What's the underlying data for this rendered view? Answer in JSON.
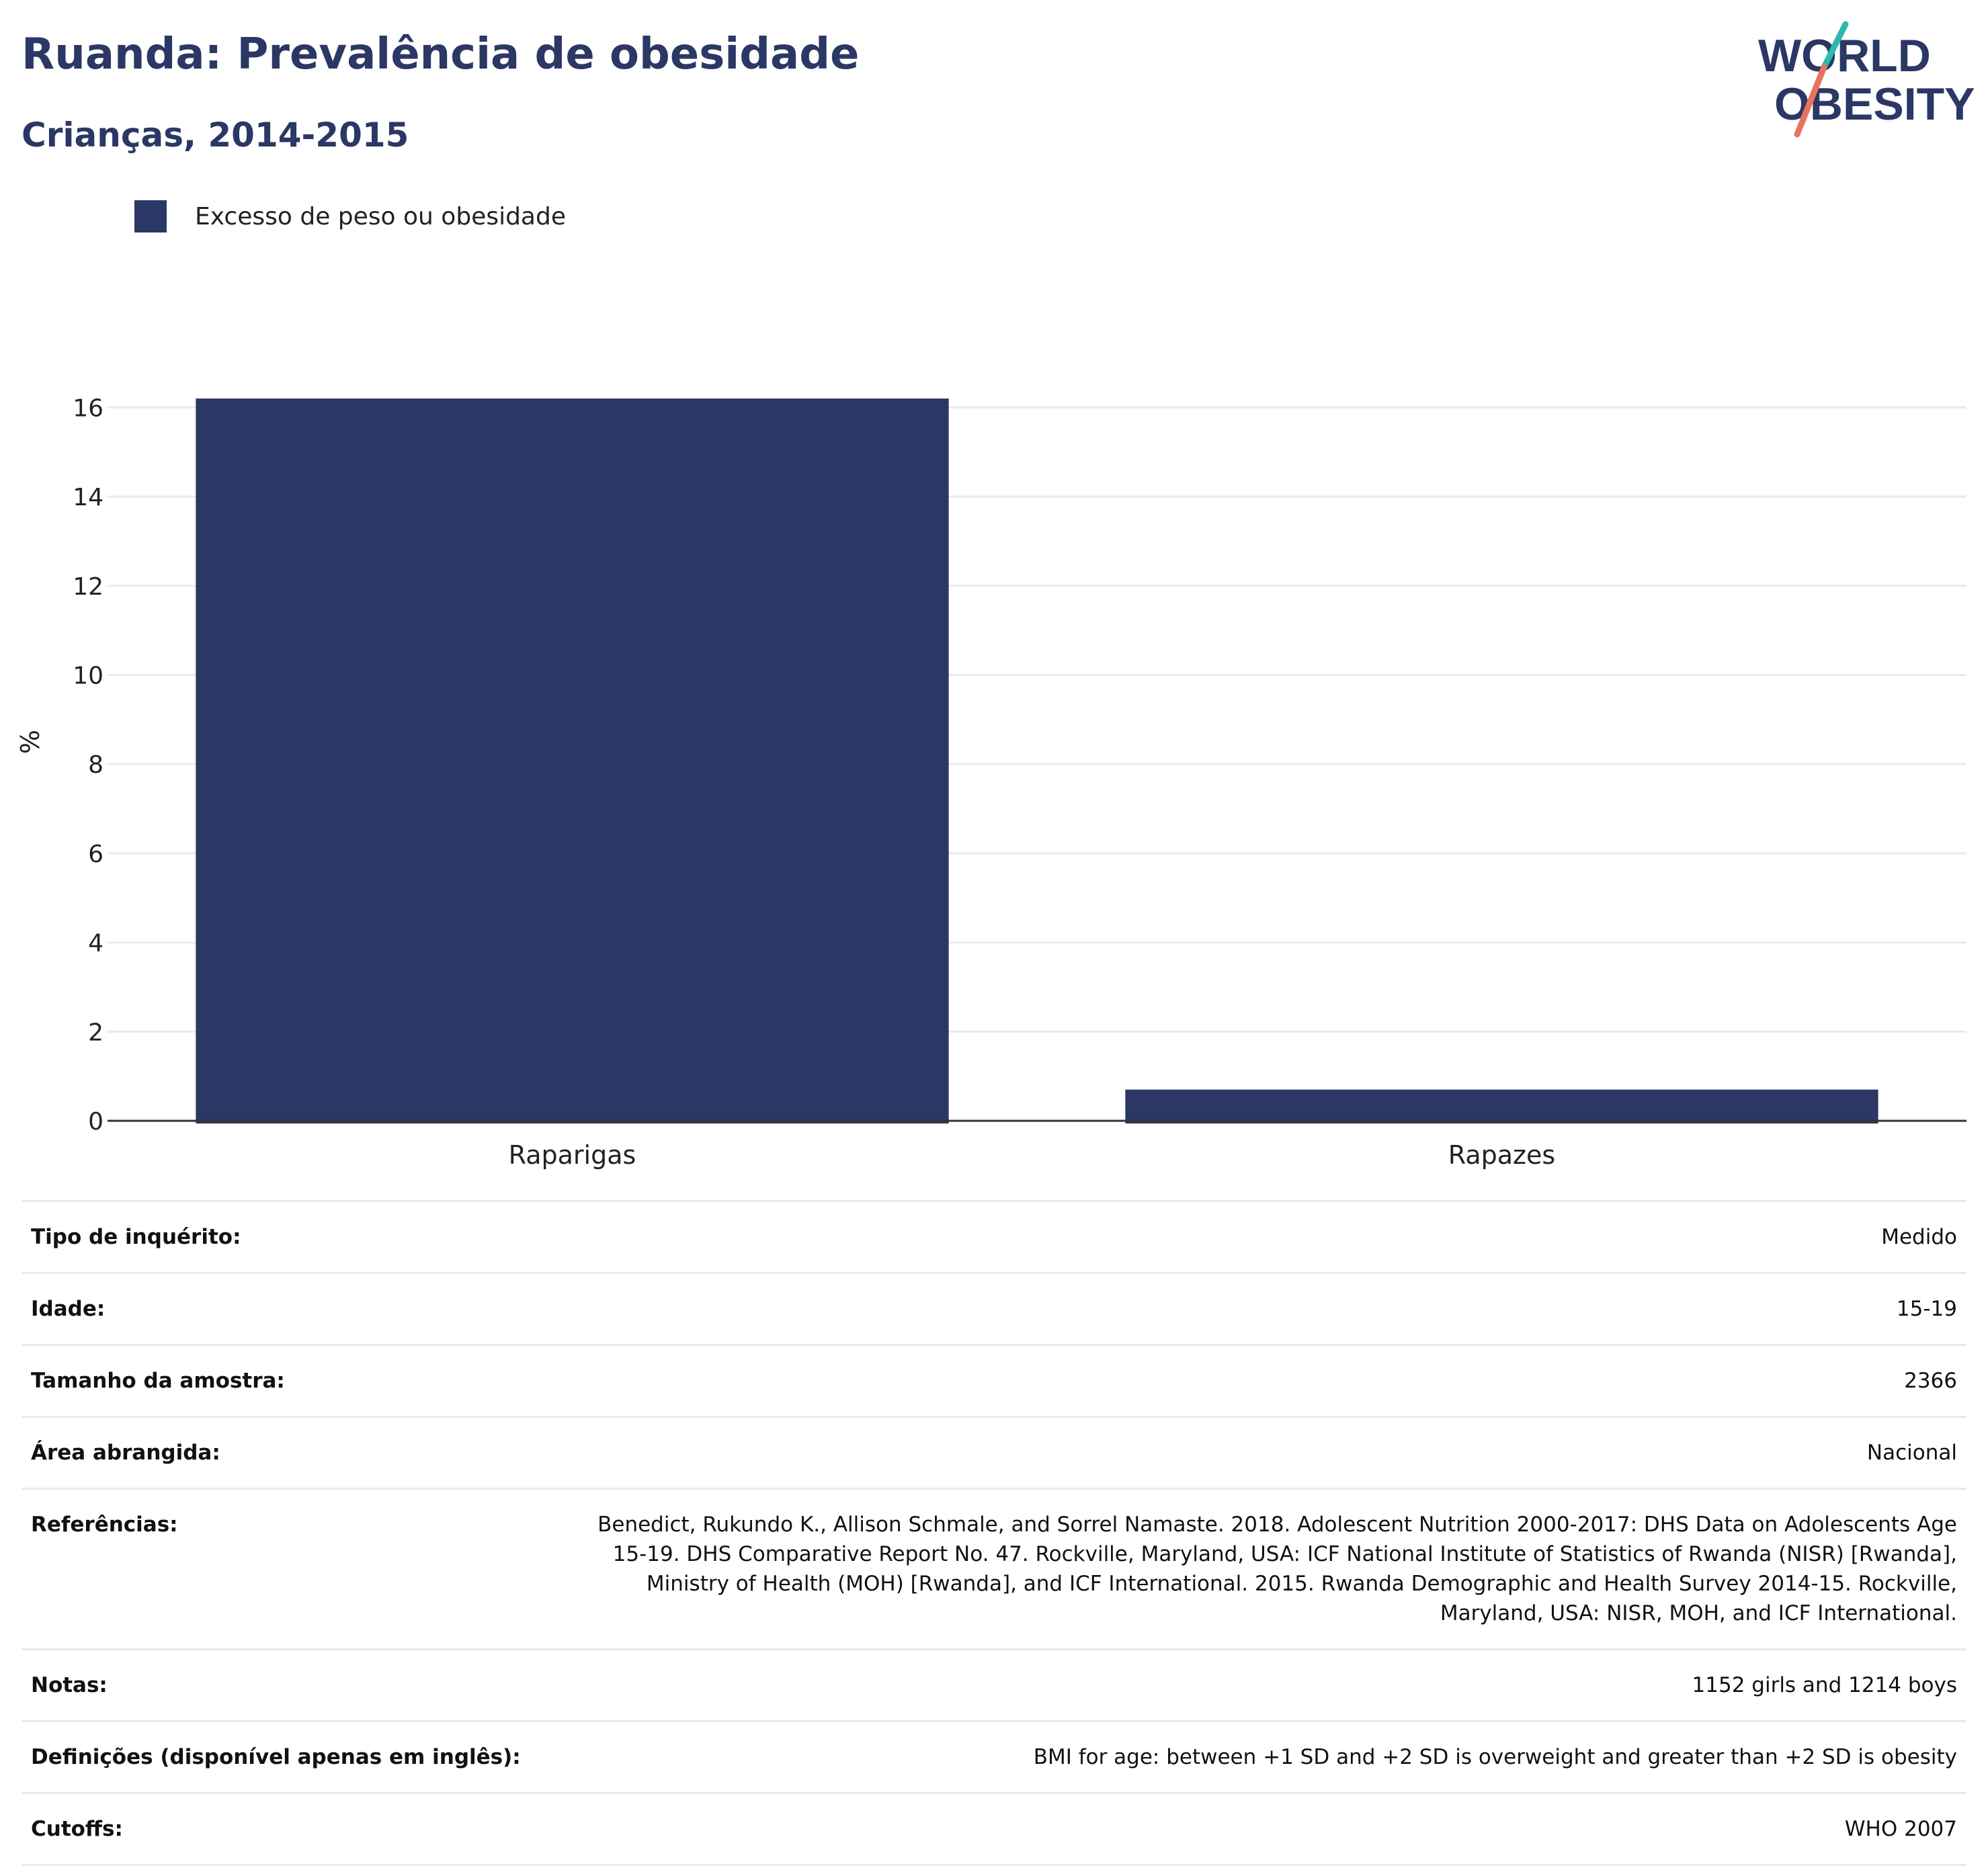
{
  "header": {
    "title": "Ruanda: Prevalência de obesidade",
    "subtitle": "Crianças, 2014-2015"
  },
  "logo": {
    "line1": "WORLD",
    "line2": "OBESITY",
    "colors": [
      "#2b3764",
      "#2bb9b0",
      "#e8735f"
    ]
  },
  "chart_data": {
    "type": "bar",
    "title": "Ruanda: Prevalência de obesidade",
    "subtitle": "Crianças, 2014-2015",
    "categories": [
      "Raparigas",
      "Rapazes"
    ],
    "series": [
      {
        "name": "Excesso de peso ou obesidade",
        "values": [
          16.2,
          0.7
        ],
        "color": "#2b3764"
      }
    ],
    "xlabel": "",
    "ylabel": "%",
    "ylim": [
      0,
      17
    ],
    "yticks": [
      0,
      2,
      4,
      6,
      8,
      10,
      12,
      14,
      16
    ],
    "grid": true,
    "legend": "top-left"
  },
  "table": {
    "rows": [
      {
        "label": "Tipo de inquérito:",
        "value": "Medido"
      },
      {
        "label": "Idade:",
        "value": "15-19"
      },
      {
        "label": "Tamanho da amostra:",
        "value": "2366"
      },
      {
        "label": "Área abrangida:",
        "value": "Nacional"
      },
      {
        "label": "Referências:",
        "value": "Benedict, Rukundo K., Allison Schmale, and Sorrel Namaste. 2018. Adolescent Nutrition 2000-2017: DHS Data on Adolescents Age 15-19. DHS Comparative Report No. 47. Rockville, Maryland, USA: ICF National Institute of Statistics of Rwanda (NISR) [Rwanda], Ministry of Health (MOH) [Rwanda], and ICF International. 2015. Rwanda Demographic and Health Survey 2014-15. Rockville, Maryland, USA: NISR, MOH, and ICF International."
      },
      {
        "label": "Notas:",
        "value": "1152 girls and 1214 boys"
      },
      {
        "label": "Definições (disponível apenas em inglês):",
        "value": "BMI for age: between +1 SD and +2 SD is overweight and greater than +2 SD is obesity"
      },
      {
        "label": "Cutoffs:",
        "value": "WHO 2007"
      }
    ]
  }
}
